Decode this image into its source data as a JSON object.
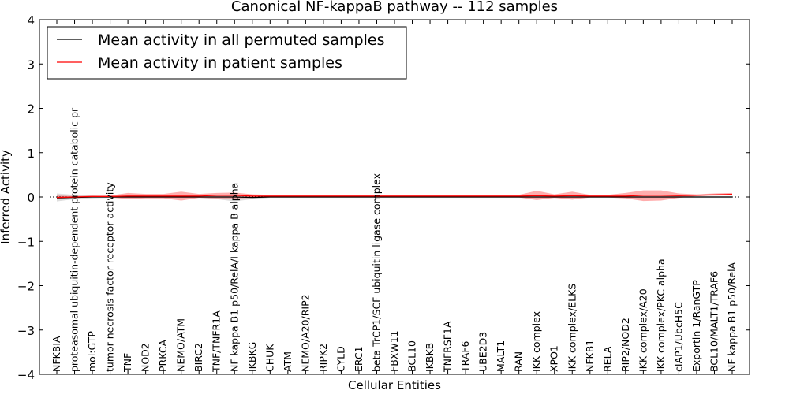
{
  "chart_data": {
    "type": "line",
    "title": "Canonical NF-kappaB pathway -- 112 samples",
    "xlabel": "Cellular Entities",
    "ylabel": "Inferred Activity",
    "ylim": [
      -4,
      4
    ],
    "yticks": [
      4,
      3,
      2,
      1,
      0,
      -1,
      -2,
      -3,
      -4
    ],
    "ytick_labels": [
      "4",
      "3",
      "2",
      "1",
      "0",
      "−1",
      "−2",
      "−3",
      "−4"
    ],
    "grid": false,
    "legend_position": "upper-left",
    "categories": [
      "NFKBIA",
      "proteasomal ubiquitin-dependent protein catabolic pr",
      "mol:GTP",
      "tumor necrosis factor receptor activity",
      "TNF",
      "NOD2",
      "PRKCA",
      "NEMO/ATM",
      "BIRC2",
      "TNF/TNFR1A",
      "NF kappa B1 p50/RelA/I kappa B alpha",
      "IKBKG",
      "CHUK",
      "ATM",
      "NEMO/A20/RIP2",
      "RIPK2",
      "CYLD",
      "ERC1",
      "beta TrCP1/SCF ubiquitin ligase complex",
      "FBXW11",
      "BCL10",
      "IKBKB",
      "TNFRSF1A",
      "TRAF6",
      "UBE2D3",
      "MALT1",
      "RAN",
      "IKK complex",
      "XPO1",
      "IKK complex/ELKS",
      "NFKB1",
      "RELA",
      "RIP2/NOD2",
      "IKK complex/A20",
      "IKK complex/PKC alpha",
      "cIAP1/UbcH5C",
      "Exportin 1/RanGTP",
      "BCL10/MALT1/TRAF6",
      "NF kappa B1 p50/RelA"
    ],
    "series": [
      {
        "name": "Mean activity in all permuted samples",
        "color": "#000000",
        "values": [
          -0.02,
          -0.01,
          0.0,
          0.0,
          0.0,
          0.0,
          0.0,
          0.0,
          0.0,
          0.0,
          0.0,
          -0.01,
          0.0,
          0.0,
          0.0,
          0.0,
          0.0,
          0.0,
          0.0,
          0.0,
          0.0,
          0.0,
          0.0,
          0.0,
          0.0,
          0.0,
          0.0,
          0.0,
          0.0,
          0.0,
          0.0,
          0.0,
          0.0,
          0.0,
          0.0,
          0.0,
          0.0,
          0.0,
          0.0
        ],
        "band_low": [
          -0.1,
          -0.05,
          -0.03,
          -0.02,
          -0.02,
          -0.02,
          -0.02,
          -0.02,
          -0.02,
          -0.05,
          -0.1,
          -0.05,
          -0.02,
          -0.02,
          -0.02,
          -0.02,
          -0.02,
          -0.02,
          -0.02,
          -0.02,
          -0.02,
          -0.02,
          -0.02,
          -0.02,
          -0.02,
          -0.02,
          -0.02,
          -0.02,
          -0.02,
          -0.02,
          -0.02,
          -0.02,
          -0.02,
          -0.02,
          -0.02,
          -0.02,
          -0.02,
          -0.02,
          -0.02
        ],
        "band_high": [
          0.08,
          0.05,
          0.03,
          0.02,
          0.03,
          0.03,
          0.03,
          0.03,
          0.03,
          0.04,
          0.05,
          0.03,
          0.02,
          0.02,
          0.02,
          0.02,
          0.02,
          0.02,
          0.02,
          0.02,
          0.02,
          0.02,
          0.02,
          0.02,
          0.02,
          0.02,
          0.02,
          0.02,
          0.02,
          0.02,
          0.02,
          0.02,
          0.02,
          0.02,
          0.02,
          0.02,
          0.02,
          0.02,
          0.02
        ]
      },
      {
        "name": "Mean activity in patient samples",
        "color": "#ff0000",
        "values": [
          -0.01,
          0.0,
          0.01,
          0.01,
          0.02,
          0.02,
          0.02,
          0.02,
          0.02,
          0.04,
          0.04,
          0.02,
          0.02,
          0.02,
          0.02,
          0.02,
          0.02,
          0.02,
          0.02,
          0.02,
          0.02,
          0.02,
          0.02,
          0.02,
          0.02,
          0.02,
          0.02,
          0.03,
          0.02,
          0.03,
          0.02,
          0.02,
          0.02,
          0.04,
          0.04,
          0.03,
          0.04,
          0.05,
          0.06
        ],
        "band_low": [
          -0.04,
          -0.02,
          -0.01,
          -0.01,
          -0.05,
          -0.03,
          -0.03,
          -0.08,
          -0.02,
          -0.03,
          -0.03,
          -0.02,
          -0.01,
          -0.01,
          -0.01,
          -0.01,
          -0.01,
          -0.01,
          -0.01,
          -0.01,
          -0.01,
          -0.01,
          -0.01,
          -0.01,
          -0.01,
          -0.01,
          -0.01,
          -0.07,
          -0.02,
          -0.06,
          -0.01,
          -0.01,
          -0.03,
          -0.09,
          -0.08,
          -0.02,
          0.02,
          0.03,
          0.04
        ],
        "band_high": [
          0.03,
          0.02,
          0.03,
          0.03,
          0.09,
          0.07,
          0.07,
          0.12,
          0.07,
          0.09,
          0.1,
          0.06,
          0.05,
          0.05,
          0.05,
          0.05,
          0.05,
          0.05,
          0.05,
          0.05,
          0.05,
          0.05,
          0.05,
          0.05,
          0.05,
          0.05,
          0.05,
          0.14,
          0.06,
          0.12,
          0.05,
          0.05,
          0.09,
          0.15,
          0.15,
          0.08,
          0.06,
          0.08,
          0.09
        ]
      }
    ]
  }
}
